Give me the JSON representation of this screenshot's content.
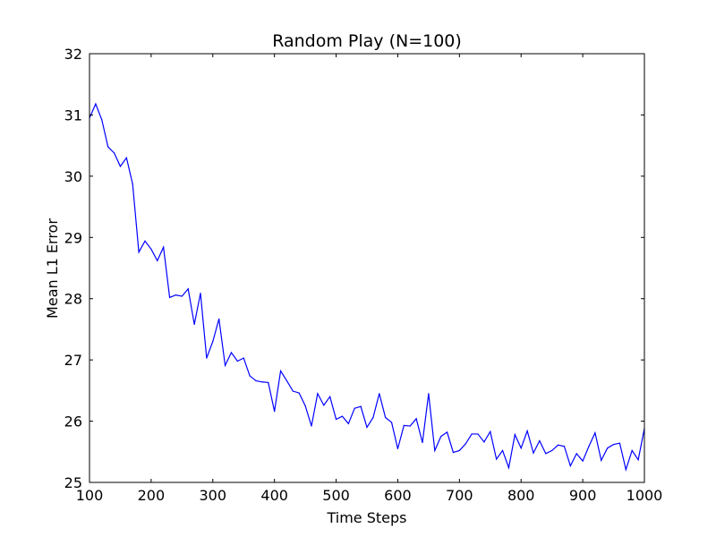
{
  "chart_data": {
    "type": "line",
    "title": "Random Play (N=100)",
    "xlabel": "Time Steps",
    "ylabel": "Mean L1 Error",
    "xlim": [
      100,
      1000
    ],
    "ylim": [
      25,
      32
    ],
    "xticks": [
      "100",
      "200",
      "300",
      "400",
      "500",
      "600",
      "700",
      "800",
      "900",
      "1000"
    ],
    "yticks": [
      "25",
      "26",
      "27",
      "28",
      "29",
      "30",
      "31",
      "32"
    ],
    "grid": false,
    "series": [
      {
        "color": "#0000ff",
        "x": [
          100,
          110,
          120,
          130,
          140,
          150,
          160,
          170,
          180,
          190,
          200,
          210,
          220,
          230,
          240,
          250,
          260,
          270,
          280,
          290,
          300,
          310,
          320,
          330,
          340,
          350,
          360,
          370,
          380,
          390,
          400,
          410,
          420,
          430,
          440,
          450,
          460,
          470,
          480,
          490,
          500,
          510,
          520,
          530,
          540,
          550,
          560,
          570,
          580,
          590,
          600,
          610,
          620,
          630,
          640,
          650,
          660,
          670,
          680,
          690,
          700,
          710,
          720,
          730,
          740,
          750,
          760,
          770,
          780,
          790,
          800,
          810,
          820,
          830,
          840,
          850,
          860,
          870,
          880,
          890,
          900,
          910,
          920,
          930,
          940,
          950,
          960,
          970,
          980,
          990,
          1000
        ],
        "y": [
          30.95,
          31.18,
          30.92,
          30.48,
          30.38,
          30.16,
          30.3,
          29.87,
          28.76,
          28.94,
          28.81,
          28.62,
          28.84,
          28.02,
          28.06,
          28.04,
          28.16,
          27.58,
          28.09,
          27.03,
          27.3,
          27.67,
          26.91,
          27.12,
          26.98,
          27.03,
          26.74,
          26.66,
          26.64,
          26.63,
          26.16,
          26.82,
          26.66,
          26.49,
          26.46,
          26.25,
          25.92,
          26.45,
          26.26,
          26.4,
          26.03,
          26.08,
          25.96,
          26.21,
          26.24,
          25.9,
          26.06,
          26.45,
          26.06,
          25.98,
          25.55,
          25.93,
          25.92,
          26.04,
          25.65,
          26.45,
          25.52,
          25.75,
          25.82,
          25.49,
          25.52,
          25.63,
          25.79,
          25.79,
          25.66,
          25.83,
          25.38,
          25.52,
          25.24,
          25.78,
          25.56,
          25.84,
          25.48,
          25.68,
          25.47,
          25.52,
          25.61,
          25.59,
          25.27,
          25.47,
          25.35,
          25.59,
          25.81,
          25.36,
          25.56,
          25.62,
          25.64,
          25.21,
          25.52,
          25.37,
          25.88
        ]
      }
    ]
  }
}
